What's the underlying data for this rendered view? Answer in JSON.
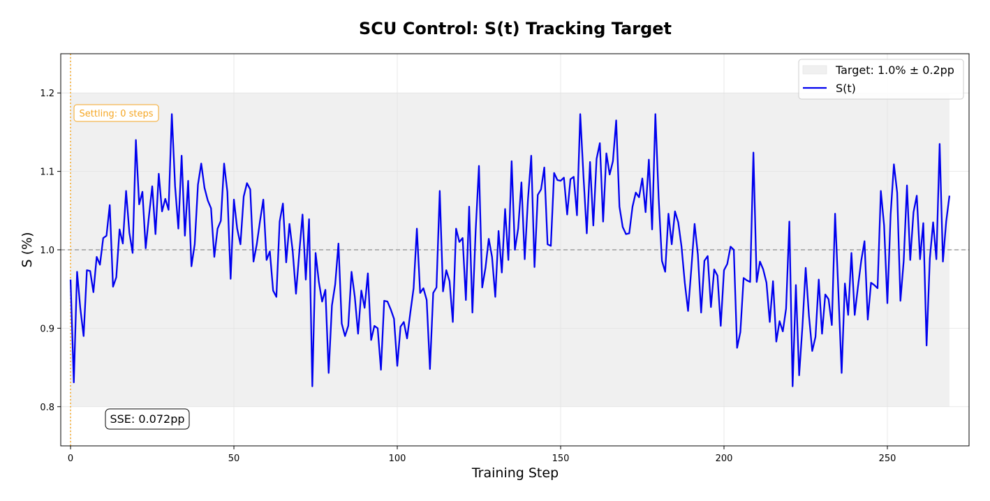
{
  "chart_data": {
    "type": "line",
    "title": "SCU Control: S(t) Tracking Target",
    "xlabel": "Training Step",
    "ylabel": "S (%)",
    "xlim": [
      -3,
      275
    ],
    "ylim": [
      0.75,
      1.25
    ],
    "x_ticks": [
      0,
      50,
      100,
      150,
      200,
      250
    ],
    "y_ticks": [
      0.8,
      0.9,
      1.0,
      1.1,
      1.2
    ],
    "x_tick_labels": [
      "0",
      "50",
      "100",
      "150",
      "200",
      "250"
    ],
    "y_tick_labels": [
      "0.8",
      "0.9",
      "1.0",
      "1.1",
      "1.2"
    ],
    "grid": true,
    "legend_position": "top-right",
    "target": {
      "label": "Target: 1.0% ± 0.2pp",
      "center": 1.0,
      "lower": 0.8,
      "upper": 1.2,
      "x_start": 0,
      "x_end": 269,
      "color": "#f0f0f0"
    },
    "settling": {
      "label": "Settling: 0 steps",
      "step": 0,
      "color": "#f5a623"
    },
    "sse_label": "SSE: 0.072pp",
    "series": [
      {
        "name": "S(t)",
        "color": "#0000ee",
        "values": [
          0.962,
          0.831,
          0.972,
          0.925,
          0.89,
          0.974,
          0.973,
          0.946,
          0.991,
          0.981,
          1.015,
          1.018,
          1.057,
          0.953,
          0.965,
          1.026,
          1.008,
          1.075,
          1.022,
          0.996,
          1.14,
          1.058,
          1.074,
          1.002,
          1.043,
          1.081,
          1.02,
          1.097,
          1.049,
          1.065,
          1.051,
          1.173,
          1.081,
          1.027,
          1.12,
          1.018,
          1.088,
          0.979,
          1.007,
          1.083,
          1.11,
          1.079,
          1.063,
          1.053,
          0.991,
          1.027,
          1.037,
          1.11,
          1.074,
          0.963,
          1.064,
          1.027,
          1.007,
          1.068,
          1.085,
          1.077,
          0.985,
          1.007,
          1.037,
          1.064,
          0.987,
          0.998,
          0.948,
          0.94,
          1.036,
          1.059,
          0.984,
          1.033,
          0.998,
          0.944,
          0.996,
          1.045,
          0.962,
          1.039,
          0.826,
          0.996,
          0.959,
          0.934,
          0.949,
          0.843,
          0.929,
          0.956,
          1.008,
          0.906,
          0.89,
          0.903,
          0.972,
          0.94,
          0.893,
          0.948,
          0.926,
          0.97,
          0.885,
          0.903,
          0.9,
          0.847,
          0.935,
          0.934,
          0.924,
          0.912,
          0.852,
          0.902,
          0.908,
          0.887,
          0.92,
          0.951,
          1.027,
          0.945,
          0.951,
          0.936,
          0.848,
          0.945,
          0.952,
          1.075,
          0.947,
          0.974,
          0.96,
          0.908,
          1.027,
          1.01,
          1.015,
          0.936,
          1.055,
          0.92,
          1.025,
          1.107,
          0.952,
          0.977,
          1.014,
          0.991,
          0.94,
          1.024,
          0.971,
          1.052,
          0.987,
          1.113,
          1.0,
          1.027,
          1.086,
          0.988,
          1.064,
          1.12,
          0.978,
          1.07,
          1.077,
          1.105,
          1.007,
          1.005,
          1.098,
          1.089,
          1.088,
          1.092,
          1.045,
          1.09,
          1.093,
          1.044,
          1.173,
          1.093,
          1.021,
          1.112,
          1.031,
          1.116,
          1.136,
          1.036,
          1.123,
          1.096,
          1.113,
          1.165,
          1.055,
          1.029,
          1.02,
          1.021,
          1.055,
          1.073,
          1.067,
          1.091,
          1.048,
          1.115,
          1.026,
          1.173,
          1.066,
          0.986,
          0.972,
          1.046,
          1.007,
          1.049,
          1.035,
          1.004,
          0.958,
          0.922,
          0.976,
          1.033,
          0.994,
          0.92,
          0.986,
          0.992,
          0.927,
          0.975,
          0.967,
          0.903,
          0.974,
          0.982,
          1.004,
          1.0,
          0.875,
          0.895,
          0.964,
          0.961,
          0.959,
          1.124,
          0.959,
          0.985,
          0.975,
          0.958,
          0.908,
          0.96,
          0.883,
          0.909,
          0.896,
          0.925,
          1.036,
          0.826,
          0.955,
          0.84,
          0.902,
          0.977,
          0.916,
          0.871,
          0.889,
          0.962,
          0.893,
          0.943,
          0.937,
          0.904,
          1.046,
          0.947,
          0.843,
          0.957,
          0.917,
          0.996,
          0.917,
          0.953,
          0.986,
          1.011,
          0.911,
          0.958,
          0.955,
          0.951,
          1.075,
          1.031,
          0.932,
          1.045,
          1.109,
          1.073,
          0.935,
          0.986,
          1.082,
          0.987,
          1.048,
          1.069,
          0.988,
          1.034,
          0.878,
          0.989,
          1.035,
          0.988,
          1.135,
          0.985,
          1.036,
          1.069
        ]
      }
    ]
  }
}
